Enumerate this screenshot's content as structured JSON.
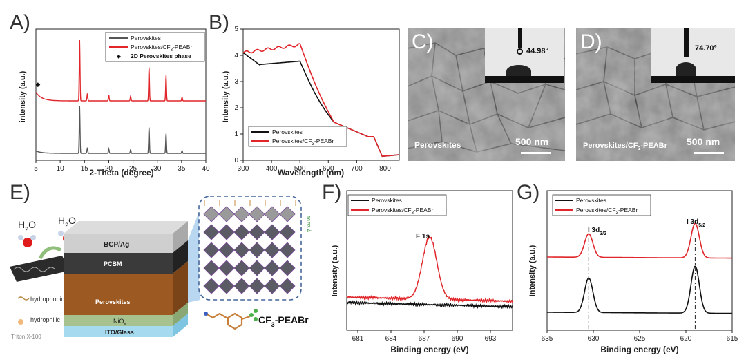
{
  "panels": {
    "A": "A)",
    "B": "B)",
    "C": "C)",
    "D": "D)",
    "E": "E)",
    "F": "F)",
    "G": "G)"
  },
  "colors": {
    "black": "#111111",
    "red": "#e0262b",
    "gray": "#555555"
  },
  "chart_data": [
    {
      "id": "A",
      "type": "line",
      "xlabel": "2-Theta (degree)",
      "ylabel": "intensity (a.u.)",
      "xlim": [
        5,
        40
      ],
      "xticks": [
        5,
        10,
        15,
        20,
        25,
        30,
        35,
        40
      ],
      "legend": [
        "Perovskites",
        "Perovskites/CF3-PEABr",
        "2D Perovskites phase"
      ],
      "legend_sub": "3",
      "peaks": [
        14.0,
        15.6,
        20.0,
        24.5,
        28.3,
        31.8,
        35.1
      ],
      "marker_x": 5.4
    },
    {
      "id": "B",
      "type": "line",
      "xlabel": "Wavelength (nm)",
      "ylabel": "Intensity (a.u.)",
      "xlim": [
        300,
        850
      ],
      "ylim": [
        0,
        5
      ],
      "xticks": [
        300,
        400,
        500,
        600,
        700,
        800
      ],
      "yticks": [
        0,
        1,
        2,
        3,
        4,
        5
      ],
      "legend": [
        "Perovskites",
        "Perovskites/CF3-PEABr"
      ]
    },
    {
      "id": "F",
      "type": "line",
      "xlabel": "Binding energy (eV)",
      "ylabel": "Intensity (a.u.)",
      "xlim": [
        680,
        695
      ],
      "xticks": [
        681,
        684,
        687,
        690,
        693
      ],
      "legend": [
        "Perovskites",
        "Perovskites/CF3-PEABr"
      ],
      "annotation": "F 1s",
      "peak": 687.5
    },
    {
      "id": "G",
      "type": "line",
      "xlabel": "Binding energy (eV)",
      "ylabel": "Intensity (a.u.)",
      "xlim": [
        635,
        615
      ],
      "xticks": [
        635,
        630,
        625,
        620,
        615
      ],
      "legend": [
        "Perovskites",
        "Perovskites/CF3-PEABr"
      ],
      "annotations": [
        "I 3d",
        "I 3d"
      ],
      "annotation_subs": [
        "3/2",
        "5/2"
      ],
      "peaks": [
        630.5,
        619.0
      ]
    }
  ],
  "sem_c": {
    "label": "Perovskites",
    "scale": "500 nm",
    "angle": "44.98°"
  },
  "sem_d": {
    "label": "Perovskites/CF3-PEABr",
    "scale": "500 nm",
    "angle": "74.70°"
  },
  "device": {
    "layers": [
      "BCP/Ag",
      "PCBM",
      "Perovskites",
      "NiOx",
      "ITO/Glass"
    ],
    "water": "H2O",
    "hydrophobic": "hydrophobic",
    "hydrophilic": "hydrophilic",
    "triton": "Triton X-100",
    "molecule": "CF3-PEABr",
    "spacing": "16.53 Å"
  }
}
